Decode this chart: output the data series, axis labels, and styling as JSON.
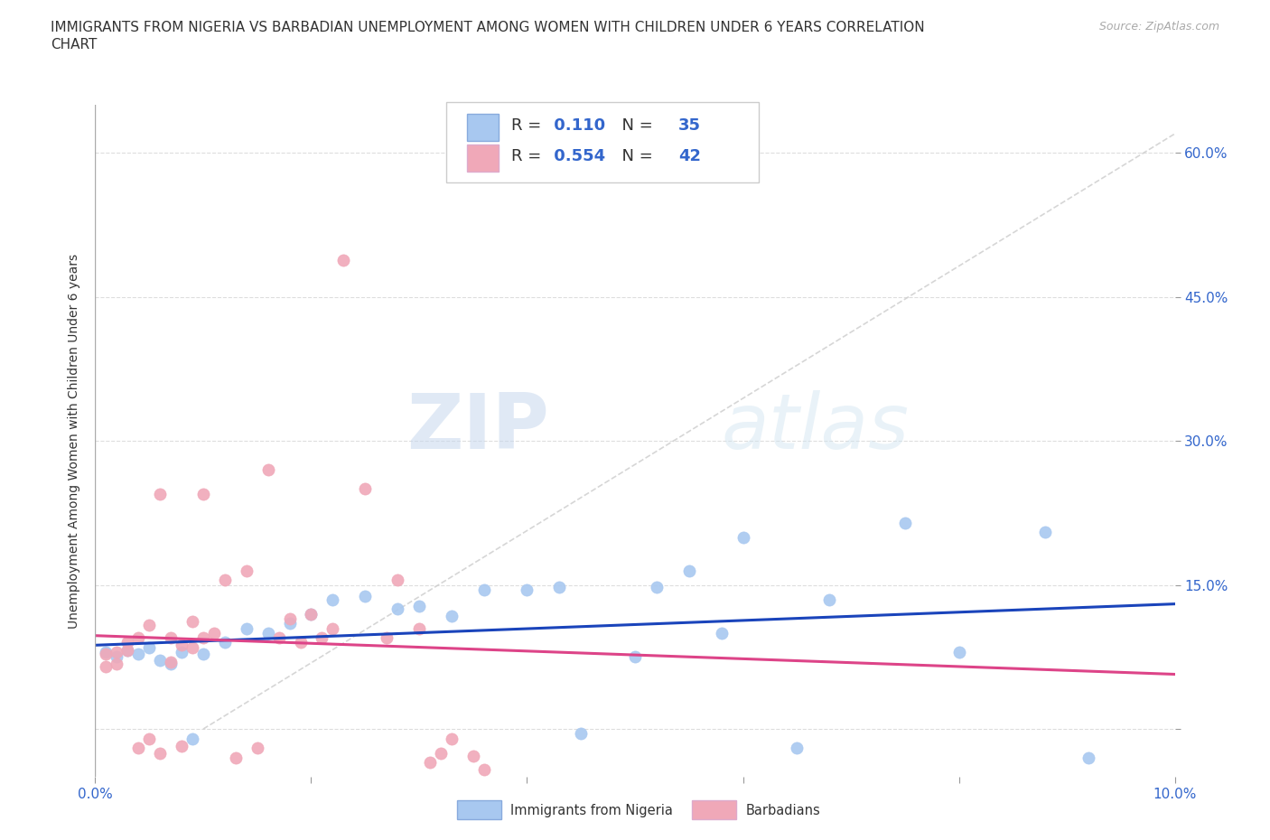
{
  "title_line1": "IMMIGRANTS FROM NIGERIA VS BARBADIAN UNEMPLOYMENT AMONG WOMEN WITH CHILDREN UNDER 6 YEARS CORRELATION",
  "title_line2": "CHART",
  "source": "Source: ZipAtlas.com",
  "ylabel": "Unemployment Among Women with Children Under 6 years",
  "xlim": [
    0.0,
    0.1
  ],
  "ylim": [
    -0.05,
    0.65
  ],
  "yticks": [
    0.0,
    0.15,
    0.3,
    0.45,
    0.6
  ],
  "yticklabels": [
    "",
    "15.0%",
    "30.0%",
    "45.0%",
    "60.0%"
  ],
  "xtick_vals": [
    0.0,
    0.02,
    0.04,
    0.06,
    0.08,
    0.1
  ],
  "xticklabels": [
    "0.0%",
    "",
    "",
    "",
    "",
    "10.0%"
  ],
  "nigeria_R": 0.11,
  "nigeria_N": 35,
  "barbadian_R": 0.554,
  "barbadian_N": 42,
  "nigeria_color": "#a8c8f0",
  "barbadian_color": "#f0a8b8",
  "nigeria_line_color": "#1a44bb",
  "barbadian_line_color": "#dd4488",
  "diag_line_color": "#cccccc",
  "background_color": "#ffffff",
  "watermark_zip": "ZIP",
  "watermark_atlas": "atlas",
  "nigeria_x": [
    0.001,
    0.002,
    0.003,
    0.004,
    0.005,
    0.006,
    0.007,
    0.008,
    0.009,
    0.01,
    0.012,
    0.014,
    0.016,
    0.018,
    0.02,
    0.022,
    0.025,
    0.028,
    0.03,
    0.033,
    0.036,
    0.04,
    0.043,
    0.045,
    0.05,
    0.052,
    0.055,
    0.058,
    0.06,
    0.065,
    0.068,
    0.075,
    0.08,
    0.088,
    0.092
  ],
  "nigeria_y": [
    0.08,
    0.075,
    0.082,
    0.078,
    0.085,
    0.072,
    0.068,
    0.08,
    -0.01,
    0.078,
    0.09,
    0.105,
    0.1,
    0.11,
    0.12,
    0.135,
    0.138,
    0.125,
    0.128,
    0.118,
    0.145,
    0.145,
    0.148,
    -0.005,
    0.075,
    0.148,
    0.165,
    0.1,
    0.2,
    -0.02,
    0.135,
    0.215,
    0.08,
    0.205,
    -0.03
  ],
  "barbadian_x": [
    0.001,
    0.001,
    0.002,
    0.002,
    0.003,
    0.003,
    0.004,
    0.004,
    0.005,
    0.005,
    0.006,
    0.006,
    0.007,
    0.007,
    0.008,
    0.008,
    0.009,
    0.009,
    0.01,
    0.01,
    0.011,
    0.012,
    0.013,
    0.014,
    0.015,
    0.016,
    0.017,
    0.018,
    0.019,
    0.02,
    0.021,
    0.022,
    0.023,
    0.025,
    0.027,
    0.028,
    0.03,
    0.031,
    0.032,
    0.033,
    0.035,
    0.036
  ],
  "barbadian_y": [
    0.078,
    0.065,
    0.08,
    0.068,
    0.082,
    0.09,
    -0.02,
    0.095,
    0.108,
    -0.01,
    0.245,
    -0.025,
    0.095,
    0.07,
    0.088,
    -0.018,
    0.112,
    0.085,
    0.095,
    0.245,
    0.1,
    0.155,
    -0.03,
    0.165,
    -0.02,
    0.27,
    0.095,
    0.115,
    0.09,
    0.12,
    0.095,
    0.105,
    0.488,
    0.25,
    0.095,
    0.155,
    0.105,
    -0.035,
    -0.025,
    -0.01,
    -0.028,
    -0.042
  ]
}
